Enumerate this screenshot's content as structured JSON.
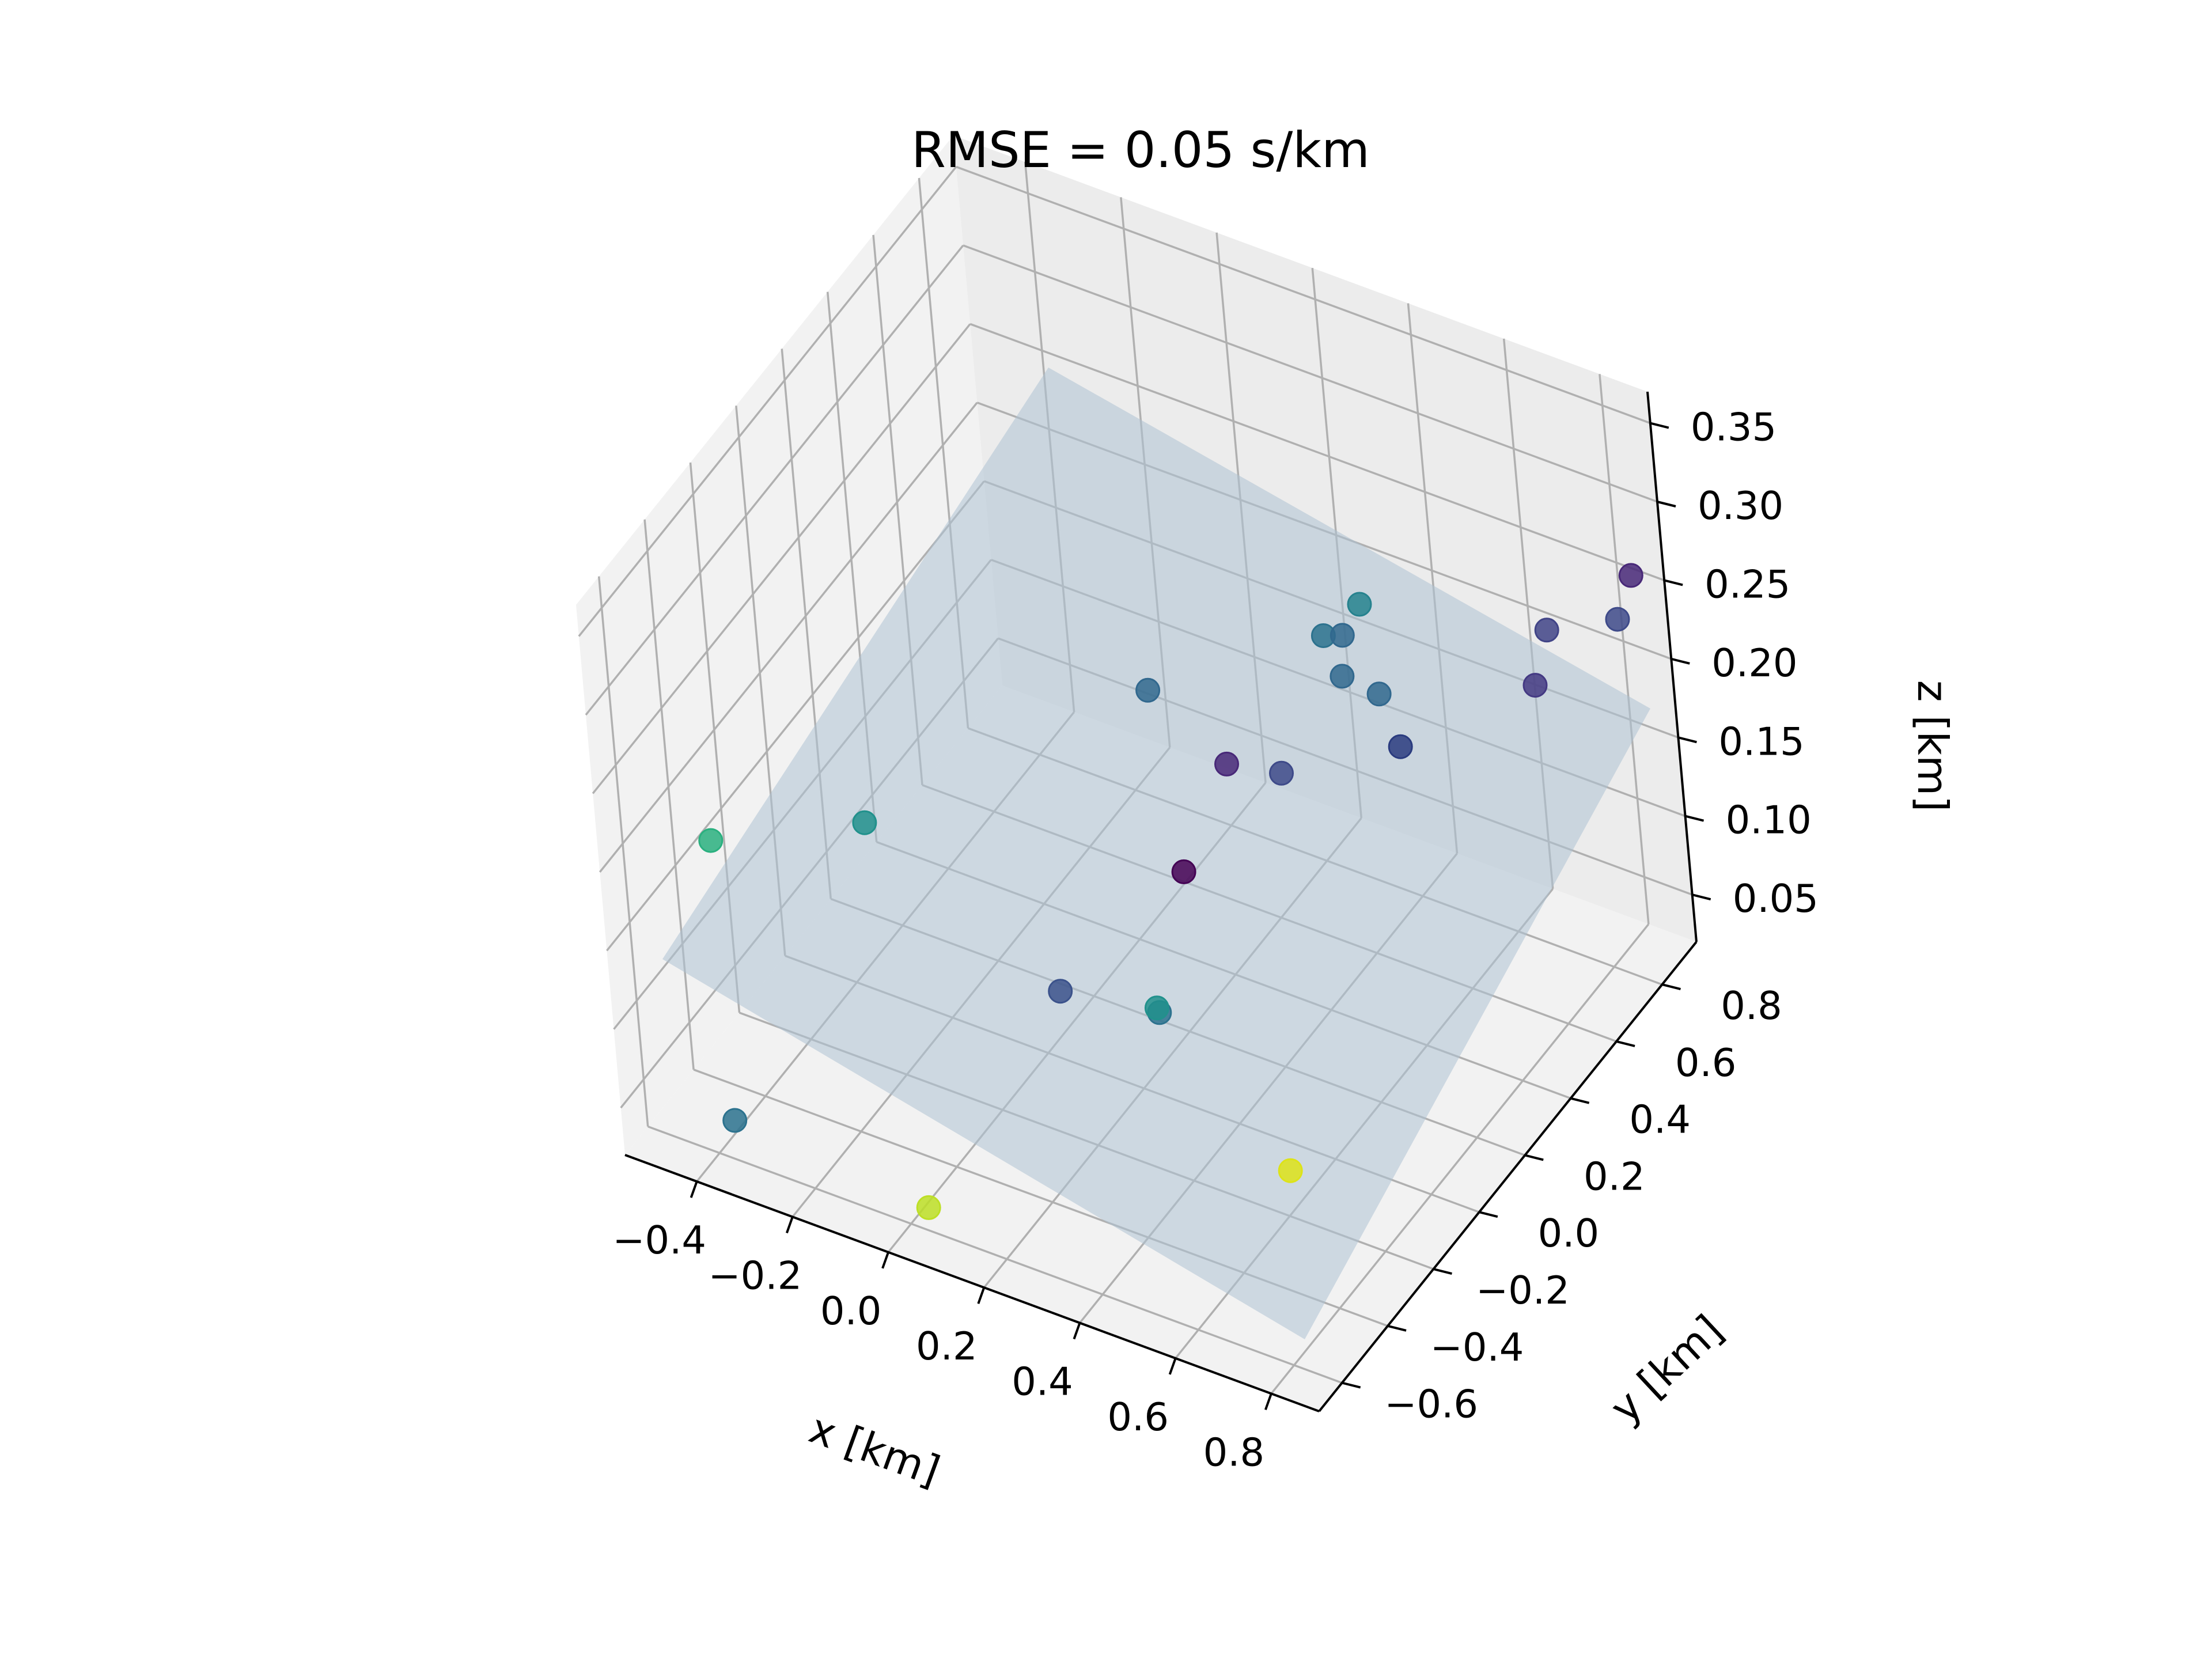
{
  "chart_data": {
    "type": "scatter",
    "title": "RMSE = 0.05 s/km",
    "xlabel": "x [km]",
    "ylabel": "y [km]",
    "zlabel": "z [km]",
    "xlim": [
      -0.55,
      0.9
    ],
    "ylim": [
      -0.7,
      0.95
    ],
    "zlim": [
      0.02,
      0.37
    ],
    "xticks": [
      "−0.4",
      "−0.2",
      "0.0",
      "0.2",
      "0.4",
      "0.6",
      "0.8"
    ],
    "yticks": [
      "−0.6",
      "−0.4",
      "−0.2",
      "0.0",
      "0.2",
      "0.4",
      "0.6",
      "0.8"
    ],
    "zticks": [
      "0.05",
      "0.10",
      "0.15",
      "0.20",
      "0.25",
      "0.30",
      "0.35"
    ],
    "xtick_values": [
      -0.4,
      -0.2,
      0.0,
      0.2,
      0.4,
      0.6,
      0.8
    ],
    "ytick_values": [
      -0.6,
      -0.4,
      -0.2,
      0.0,
      0.2,
      0.4,
      0.6,
      0.8
    ],
    "ztick_values": [
      0.05,
      0.1,
      0.15,
      0.2,
      0.25,
      0.3,
      0.35
    ],
    "grid": true,
    "plane_color": "#aec3d4",
    "points": [
      {
        "x": -0.48,
        "y": -0.38,
        "z": 0.17,
        "color": "#2ab07f"
      },
      {
        "x": -0.21,
        "y": -0.26,
        "z": 0.19,
        "color": "#21918c"
      },
      {
        "x": -0.35,
        "y": -0.62,
        "z": 0.05,
        "color": "#2c728e"
      },
      {
        "x": 0.03,
        "y": -0.58,
        "z": 0.03,
        "color": "#bddf26"
      },
      {
        "x": 0.12,
        "y": -0.15,
        "z": 0.1,
        "color": "#3b528b"
      },
      {
        "x": 0.33,
        "y": -0.15,
        "z": 0.11,
        "color": "#2c728e"
      },
      {
        "x": 0.32,
        "y": -0.14,
        "z": 0.11,
        "color": "#21918c"
      },
      {
        "x": 0.3,
        "y": 0.05,
        "z": 0.16,
        "color": "#440154"
      },
      {
        "x": 0.12,
        "y": 0.3,
        "z": 0.21,
        "color": "#31688e"
      },
      {
        "x": 0.32,
        "y": 0.22,
        "z": 0.2,
        "color": "#482878"
      },
      {
        "x": 0.42,
        "y": 0.25,
        "z": 0.2,
        "color": "#3e4a89"
      },
      {
        "x": 0.4,
        "y": 0.5,
        "z": 0.24,
        "color": "#2c728e"
      },
      {
        "x": 0.43,
        "y": 0.52,
        "z": 0.24,
        "color": "#31688e"
      },
      {
        "x": 0.44,
        "y": 0.58,
        "z": 0.25,
        "color": "#26828e"
      },
      {
        "x": 0.46,
        "y": 0.45,
        "z": 0.23,
        "color": "#31688e"
      },
      {
        "x": 0.52,
        "y": 0.48,
        "z": 0.22,
        "color": "#31688e"
      },
      {
        "x": 0.6,
        "y": 0.4,
        "z": 0.21,
        "color": "#2a3b7f"
      },
      {
        "x": 0.61,
        "y": -0.2,
        "z": 0.05,
        "color": "#dde318"
      },
      {
        "x": 0.73,
        "y": 0.78,
        "z": 0.23,
        "color": "#414487"
      },
      {
        "x": 0.76,
        "y": 0.66,
        "z": 0.22,
        "color": "#443983"
      },
      {
        "x": 0.84,
        "y": 0.93,
        "z": 0.25,
        "color": "#482878"
      },
      {
        "x": 0.83,
        "y": 0.88,
        "z": 0.23,
        "color": "#3e4a89"
      }
    ]
  }
}
